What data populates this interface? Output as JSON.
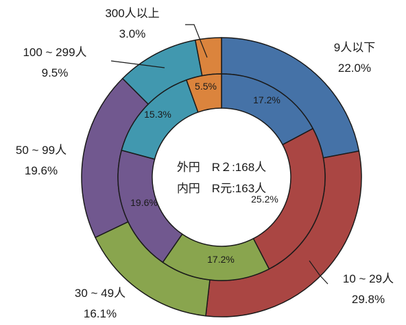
{
  "chart_data": {
    "type": "donut",
    "categories": [
      "9人以下",
      "10～29人",
      "30～49人",
      "50～99人",
      "100～299人",
      "300人以上"
    ],
    "category_labels": [
      "9人以下",
      "10 ~ 29人",
      "30 ~ 49人",
      "50 ~ 99人",
      "100 ~ 299人",
      "300人以上"
    ],
    "colors": [
      "#4572A7",
      "#AA4643",
      "#89A54E",
      "#71588F",
      "#4198AF",
      "#DB843D"
    ],
    "series": [
      {
        "ring": "outer",
        "values": [
          22.0,
          29.8,
          16.1,
          19.6,
          9.5,
          3.0
        ],
        "labels": [
          "22.0%",
          "29.8%",
          "16.1%",
          "19.6%",
          "9.5%",
          "3.0%"
        ]
      },
      {
        "ring": "inner",
        "values": [
          17.2,
          25.2,
          17.2,
          19.6,
          15.3,
          5.5
        ],
        "labels": [
          "17.2%",
          "25.2%",
          "17.2%",
          "19.6%",
          "15.3%",
          "5.5%"
        ]
      }
    ],
    "center_text": [
      "外円　R２:168人",
      "内円　R元:163人"
    ]
  }
}
